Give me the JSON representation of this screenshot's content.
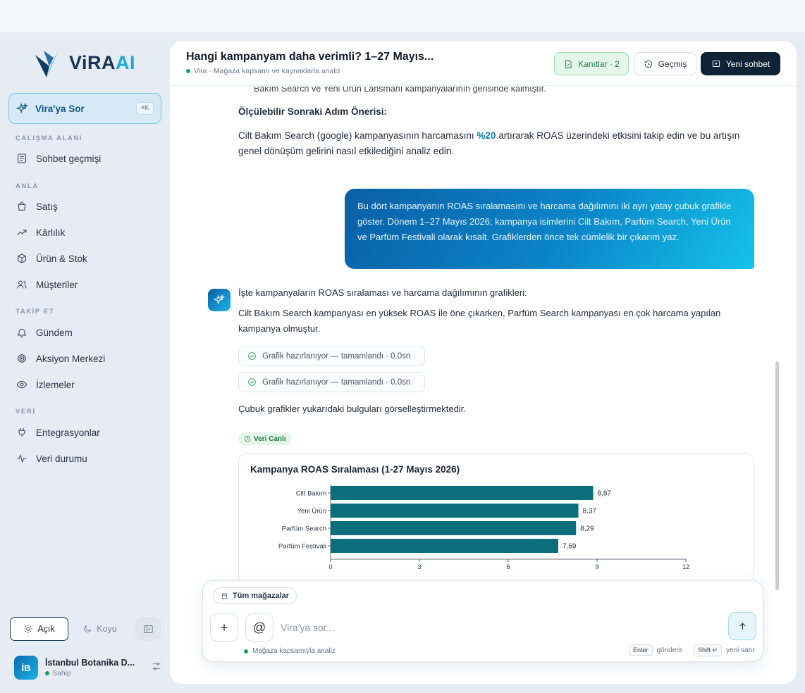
{
  "brand": {
    "name_main": "ViRA",
    "name_accent": "AI"
  },
  "sidebar": {
    "ask": {
      "label": "Vira'ya Sor",
      "shortcut": "⌘K"
    },
    "sections": {
      "workspace": "ÇALIŞMA ALANI",
      "understand": "ANLA",
      "track": "TAKİP ET",
      "data": "VERİ"
    },
    "items": {
      "chat_history": "Sohbet geçmişi",
      "sales": "Satış",
      "profitability": "Kârlılık",
      "product_stock": "Ürün & Stok",
      "customers": "Müşteriler",
      "agenda": "Gündem",
      "action_center": "Aksiyon Merkezi",
      "watchlists": "İzlemeler",
      "integrations": "Entegrasyonlar",
      "data_status": "Veri durumu"
    },
    "theme": {
      "light": "Açık",
      "dark": "Koyu"
    },
    "user": {
      "initials": "İB",
      "name": "İstanbul Botanika D...",
      "role": "Sahip"
    }
  },
  "header": {
    "title": "Hangi kampanyam daha verimli? 1–27 Mayıs...",
    "subtitle": "Vira · Mağaza kapsamı ve kaynaklarla analiz",
    "evidence_label": "Kanıtlar · 2",
    "history_label": "Geçmiş",
    "new_chat_label": "Yeni sohbet"
  },
  "messages": {
    "cut_line": "Bakım Search ve Yeni Ürün Lansmanı kampanyalarının gerisinde kalmıştır.",
    "next_step_heading": "Ölçülebilir Sonraki Adım Önerisi:",
    "next_step_part1": "Cilt Bakım Search (google) kampanyasının harcamasını ",
    "next_step_highlight": "%20",
    "next_step_part2": " artırarak ROAS üzerindeki etkisini takip edin ve bu artışın genel dönüşüm gelirini nasıl etkilediğini analiz edin.",
    "user_prompt": "Bu dört kampanyanın ROAS sıralamasını ve harcama dağılımını iki ayrı yatay çubuk grafikle göster. Dönem 1–27 Mayıs 2026; kampanya isimlerini Cilt Bakım, Parfüm Search, Yeni Ürün ve Parfüm Festivali olarak kısalt. Grafiklerden önce tek cümlelik bir çıkarım yaz.",
    "bot_intro": "İşte kampanyaların ROAS sıralaması ve harcama dağılımının grafikleri:",
    "bot_insight": "Cilt Bakım Search kampanyası en yüksek ROAS ile öne çıkarken, Parfüm Search kampanyası en çok harcama yapılan kampanya olmuştur.",
    "tool_1": "Grafik hazırlanıyor — tamamlandı · 0.0sn",
    "tool_2": "Grafik hazırlanıyor — tamamlandı · 0.0sn",
    "bot_outro": "Çubuk grafikler yukarıdaki bulguları görselleştirmektedir.",
    "live_badge": "Veri Canlı"
  },
  "chart_data": {
    "type": "bar",
    "orientation": "horizontal",
    "title": "Kampanya ROAS Sıralaması (1-27 Mayıs 2026)",
    "categories": [
      "Cilt Bakım",
      "Yeni Ürün",
      "Parfüm Search",
      "Parfüm Festivali"
    ],
    "values": [
      8.87,
      8.37,
      8.29,
      7.69
    ],
    "value_labels": [
      "8,87",
      "8,37",
      "8,29",
      "7,69"
    ],
    "xlim": [
      0,
      12
    ],
    "xticks": [
      0,
      3,
      6,
      9,
      12
    ],
    "xlabel": "",
    "ylabel": "",
    "grid": false,
    "bar_color": "#0b6e7a"
  },
  "composer": {
    "store_chip": "Tüm mağazalar",
    "placeholder": "Vira'ya sor...",
    "footer": "Mağaza kapsamıyla analiz",
    "enter_key": "Enter",
    "enter_hint": "gönderir",
    "shift_key": "Shift ↵",
    "shift_hint": "yeni satır"
  },
  "colors": {
    "accent": "#1aa9d8",
    "navy": "#0f2236",
    "success": "#19a35a"
  }
}
